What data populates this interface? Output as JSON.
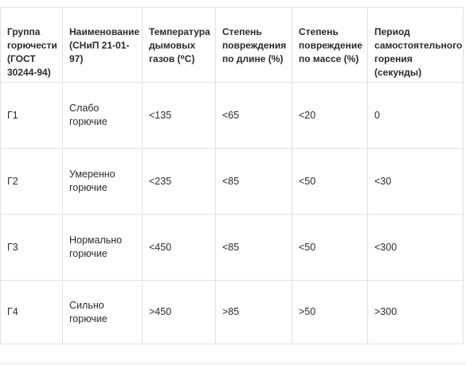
{
  "table": {
    "headers": [
      "Группа горючести (ГОСТ 30244-94)",
      "Наименование (СНиП 21-01-97)",
      "Температура дымовых газов (⁰С)",
      "Степень повреждения по длине (%)",
      "Степень повреждение по массе (%)",
      "Период самостоятельного горения (секунды)"
    ],
    "rows": [
      [
        "Г1",
        "Слабо горючие",
        "<135",
        "<65",
        "<20",
        "0"
      ],
      [
        "Г2",
        "Умеренно горючие",
        "<235",
        "<85",
        "<50",
        "<30"
      ],
      [
        "Г3",
        "Нормально горючие",
        "<450",
        "<85",
        "<50",
        "<300"
      ],
      [
        "Г4",
        "Сильно горючие",
        ">450",
        ">85",
        ">50",
        ">300"
      ]
    ]
  },
  "colors": {
    "border": "#e3e1dc",
    "text": "#2b2b2b",
    "background": "#ffffff"
  }
}
